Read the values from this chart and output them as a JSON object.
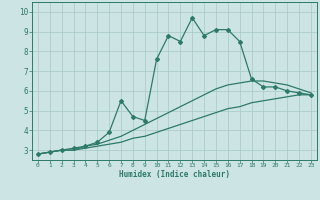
{
  "xlabel": "Humidex (Indice chaleur)",
  "ylabel": "",
  "xlim": [
    -0.5,
    23.5
  ],
  "ylim": [
    2.5,
    10.5
  ],
  "yticks": [
    3,
    4,
    5,
    6,
    7,
    8,
    9,
    10
  ],
  "xticks": [
    0,
    1,
    2,
    3,
    4,
    5,
    6,
    7,
    8,
    9,
    10,
    11,
    12,
    13,
    14,
    15,
    16,
    17,
    18,
    19,
    20,
    21,
    22,
    23
  ],
  "bg_color": "#cde4e4",
  "grid_color": "#a8c8c8",
  "line_color": "#2d7a6a",
  "series": [
    {
      "x": [
        0,
        1,
        2,
        3,
        4,
        5,
        6,
        7,
        8,
        9,
        10,
        11,
        12,
        13,
        14,
        15,
        16,
        17,
        18,
        19,
        20,
        21,
        22,
        23
      ],
      "y": [
        2.8,
        2.9,
        3.0,
        3.0,
        3.1,
        3.2,
        3.3,
        3.4,
        3.6,
        3.7,
        3.9,
        4.1,
        4.3,
        4.5,
        4.7,
        4.9,
        5.1,
        5.2,
        5.4,
        5.5,
        5.6,
        5.7,
        5.8,
        5.8
      ],
      "marker": false,
      "lw": 0.9
    },
    {
      "x": [
        0,
        1,
        2,
        3,
        4,
        5,
        6,
        7,
        8,
        9,
        10,
        11,
        12,
        13,
        14,
        15,
        16,
        17,
        18,
        19,
        20,
        21,
        22,
        23
      ],
      "y": [
        2.8,
        2.9,
        3.0,
        3.0,
        3.2,
        3.3,
        3.5,
        3.7,
        4.0,
        4.3,
        4.6,
        4.9,
        5.2,
        5.5,
        5.8,
        6.1,
        6.3,
        6.4,
        6.5,
        6.5,
        6.4,
        6.3,
        6.1,
        5.9
      ],
      "marker": false,
      "lw": 0.9
    },
    {
      "x": [
        0,
        1,
        2,
        3,
        4,
        5,
        6,
        7,
        8,
        9,
        10,
        11,
        12,
        13,
        14,
        15,
        16,
        17,
        18,
        19,
        20,
        21,
        22,
        23
      ],
      "y": [
        2.8,
        2.9,
        3.0,
        3.1,
        3.2,
        3.4,
        3.9,
        5.5,
        4.7,
        4.5,
        7.6,
        8.8,
        8.5,
        9.7,
        8.8,
        9.1,
        9.1,
        8.5,
        6.6,
        6.2,
        6.2,
        6.0,
        5.9,
        5.8
      ],
      "marker": true,
      "lw": 0.9
    }
  ]
}
